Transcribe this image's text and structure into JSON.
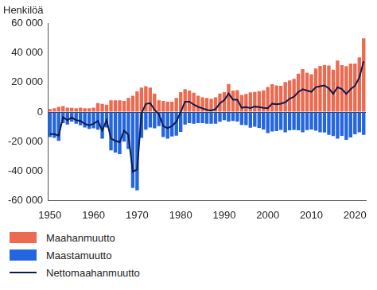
{
  "chart_data": {
    "type": "bar",
    "y_label": "Henkilöä",
    "stacked": true,
    "grid": false,
    "legend": "bottom-left",
    "categories": [
      1950,
      null,
      null,
      null,
      null,
      null,
      null,
      null,
      null,
      null,
      1960,
      null,
      null,
      null,
      null,
      null,
      null,
      null,
      null,
      null,
      1970,
      null,
      null,
      null,
      null,
      null,
      null,
      null,
      null,
      null,
      1980,
      null,
      null,
      null,
      null,
      null,
      null,
      null,
      null,
      null,
      1990,
      null,
      null,
      null,
      null,
      null,
      null,
      null,
      null,
      null,
      2000,
      null,
      null,
      null,
      null,
      null,
      null,
      null,
      null,
      null,
      2010,
      null,
      null,
      null,
      null,
      null,
      null,
      null,
      null,
      null,
      2020,
      null,
      null
    ],
    "series": [
      {
        "name": "Maahanmuutto",
        "type": "bar",
        "color": "#ec6a50",
        "values": [
          2000,
          2500,
          3500,
          4000,
          3000,
          2800,
          2500,
          3000,
          2500,
          2500,
          3000,
          6000,
          5500,
          5000,
          8000,
          8000,
          8000,
          7500,
          9500,
          11000,
          14000,
          16500,
          17500,
          16500,
          12500,
          8000,
          7500,
          7000,
          7000,
          9500,
          13500,
          15500,
          14500,
          13000,
          11000,
          10000,
          9500,
          9000,
          10000,
          12500,
          13500,
          19000,
          14500,
          14800,
          11600,
          12200,
          13300,
          13600,
          14200,
          14700,
          16900,
          18900,
          18100,
          17800,
          20300,
          21400,
          22500,
          26000,
          29100,
          26700,
          25600,
          29500,
          31300,
          31900,
          31500,
          28700,
          34900,
          31800,
          31100,
          32800,
          32900,
          37000,
          49900
        ]
      },
      {
        "name": "Maastamuutto",
        "type": "bar",
        "color": "#2466e0",
        "values": [
          -17000,
          -17500,
          -19500,
          -7500,
          -8500,
          -6500,
          -8000,
          -9000,
          -10500,
          -11500,
          -11000,
          -12000,
          -18000,
          -10500,
          -26000,
          -27500,
          -28500,
          -20000,
          -25000,
          -51500,
          -53000,
          -17500,
          -12000,
          -10500,
          -11000,
          -9500,
          -17000,
          -18000,
          -16500,
          -16000,
          -13500,
          -8500,
          -7500,
          -8000,
          -7500,
          -7500,
          -8000,
          -8000,
          -8000,
          -6600,
          -5500,
          -6500,
          -6100,
          -6400,
          -8700,
          -8900,
          -10600,
          -9900,
          -10800,
          -11900,
          -14300,
          -13200,
          -12900,
          -12100,
          -13700,
          -12400,
          -12100,
          -12400,
          -13700,
          -12200,
          -11900,
          -12700,
          -13800,
          -13900,
          -15500,
          -16300,
          -18100,
          -16200,
          -18800,
          -17300,
          -15100,
          -13700,
          -15500
        ]
      },
      {
        "name": "Nettomaahanmuutto",
        "type": "line",
        "color": "#0d1b4c",
        "values": [
          -15000,
          -15000,
          -16000,
          -3500,
          -5500,
          -3700,
          -5500,
          -6000,
          -8000,
          -9000,
          -8000,
          -6000,
          -12500,
          -5500,
          -18000,
          -19500,
          -20500,
          -12500,
          -15500,
          -40500,
          -39000,
          -1000,
          5500,
          6000,
          1500,
          -1500,
          -9500,
          -11000,
          -9500,
          -6500,
          0,
          7000,
          7000,
          5000,
          3500,
          2500,
          1500,
          1000,
          2000,
          5900,
          8000,
          12500,
          8400,
          8400,
          2900,
          3300,
          2700,
          3700,
          3400,
          2800,
          2600,
          5700,
          5200,
          5700,
          6600,
          9000,
          10400,
          13600,
          15400,
          14500,
          13700,
          16800,
          17500,
          18000,
          16000,
          12400,
          16800,
          15600,
          12300,
          15500,
          17800,
          23300,
          34400
        ]
      }
    ],
    "ylim": [
      -60000,
      60000
    ],
    "yticks": [
      {
        "value": -60000,
        "label": "-60 000"
      },
      {
        "value": -40000,
        "label": "-40 000"
      },
      {
        "value": -20000,
        "label": "-20 000"
      },
      0,
      {
        "value": 20000,
        "label": "20 000"
      },
      {
        "value": 40000,
        "label": "40 000"
      },
      {
        "value": 60000,
        "label": "60 000"
      }
    ]
  }
}
